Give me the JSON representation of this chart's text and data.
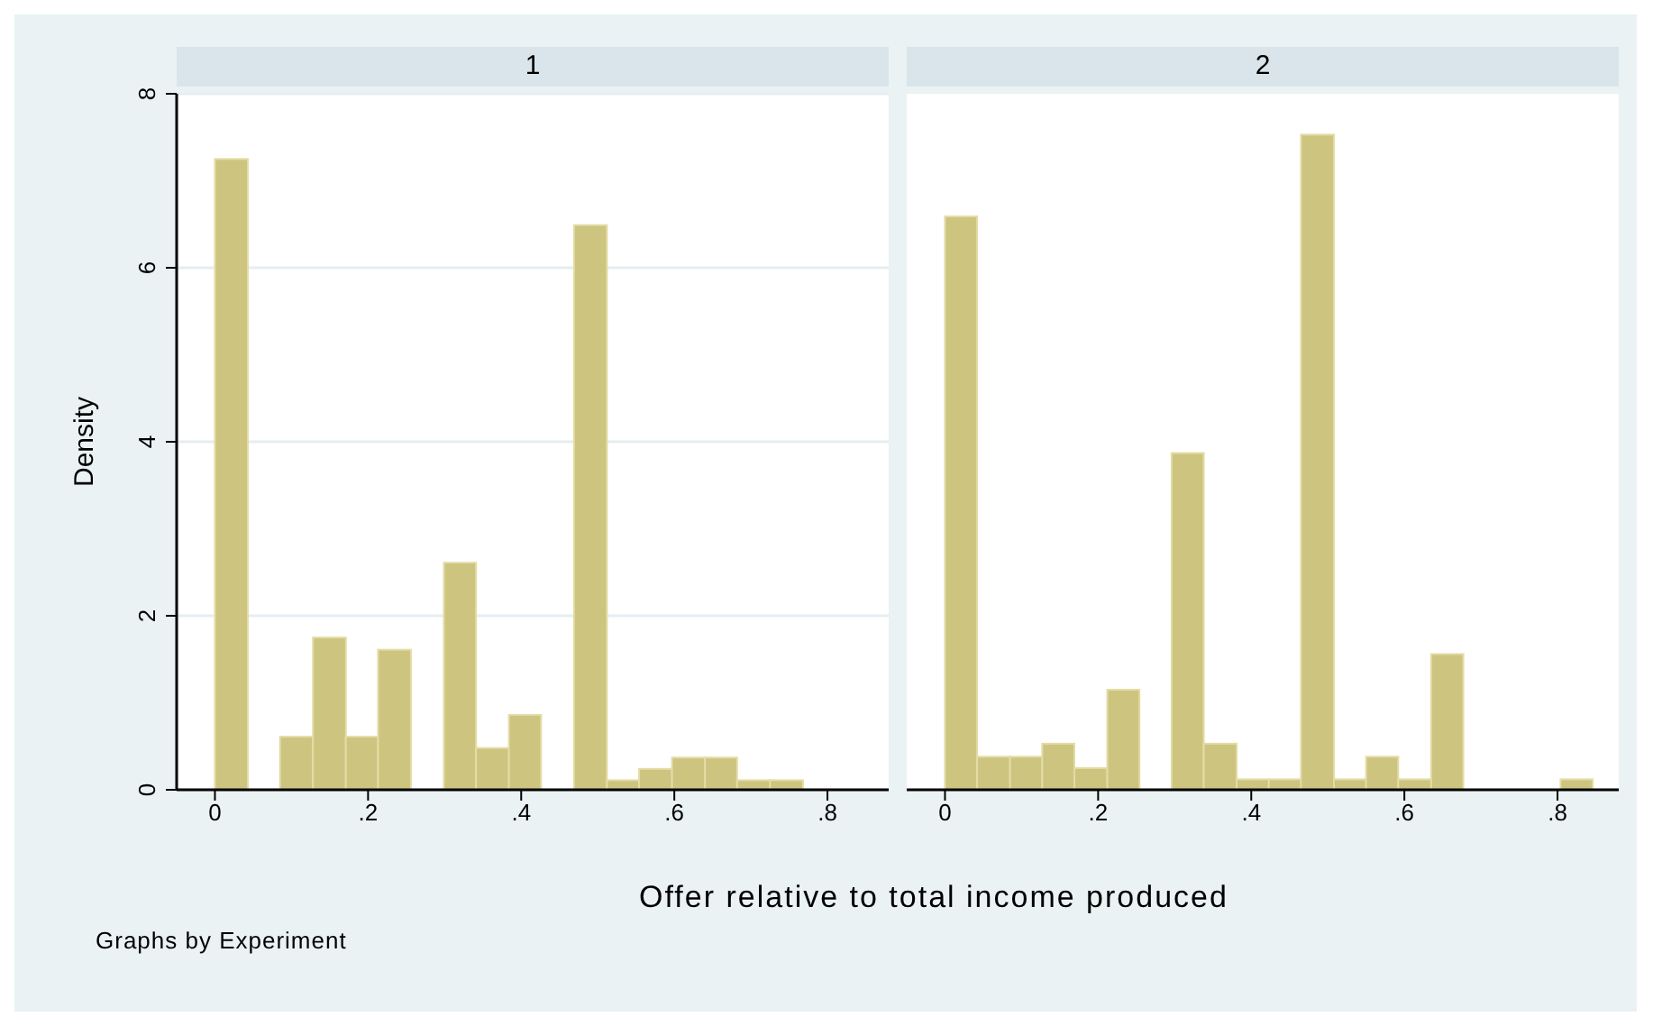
{
  "chart_data": [
    {
      "type": "histogram",
      "title": "1",
      "ylabel": "Density",
      "xlabel": "Offer relative to total income produced",
      "annotations": [
        "Graphs by Experiment"
      ],
      "bins": [
        0,
        0.043,
        0.085,
        0.128,
        0.171,
        0.213,
        0.256,
        0.299,
        0.341,
        0.384,
        0.426,
        0.469,
        0.512,
        0.554,
        0.597,
        0.64,
        0.682,
        0.725,
        0.768
      ],
      "values": [
        7.25,
        0,
        0.61,
        1.75,
        0.61,
        1.61,
        0,
        2.61,
        0.48,
        0.86,
        0,
        6.49,
        0.11,
        0.24,
        0.37,
        0.37,
        0.11,
        0.11
      ],
      "color": "#cdc47f",
      "xlim": [
        -0.05,
        0.88
      ],
      "ylim": [
        0,
        8
      ],
      "xticks": [
        0,
        {
          "value": 0.2,
          "label": ".2"
        },
        {
          "value": 0.4,
          "label": ".4"
        },
        {
          "value": 0.6,
          "label": ".6"
        },
        {
          "value": 0.8,
          "label": ".8"
        }
      ],
      "yticks": [
        0,
        2,
        4,
        6,
        8
      ],
      "grid": "y"
    },
    {
      "type": "histogram",
      "title": "2",
      "bins": [
        0,
        0.042,
        0.085,
        0.127,
        0.169,
        0.212,
        0.254,
        0.296,
        0.338,
        0.381,
        0.423,
        0.465,
        0.508,
        0.55,
        0.592,
        0.635,
        0.677,
        0.804,
        0.846
      ],
      "values": [
        6.59,
        0.38,
        0.38,
        0.53,
        0.25,
        1.15,
        0,
        3.87,
        0.53,
        0.12,
        0.12,
        7.53,
        0.12,
        0.38,
        0.12,
        1.56,
        0,
        0.12
      ],
      "color": "#cdc47f",
      "xlim": [
        -0.05,
        0.88
      ],
      "ylim": [
        0,
        8
      ],
      "xticks": [
        0,
        {
          "value": 0.2,
          "label": ".2"
        },
        {
          "value": 0.4,
          "label": ".4"
        },
        {
          "value": 0.6,
          "label": ".6"
        },
        {
          "value": 0.8,
          "label": ".8"
        }
      ],
      "yticks": [
        0,
        2,
        4,
        6,
        8
      ],
      "grid": "y",
      "tick_labels": "x"
    }
  ]
}
